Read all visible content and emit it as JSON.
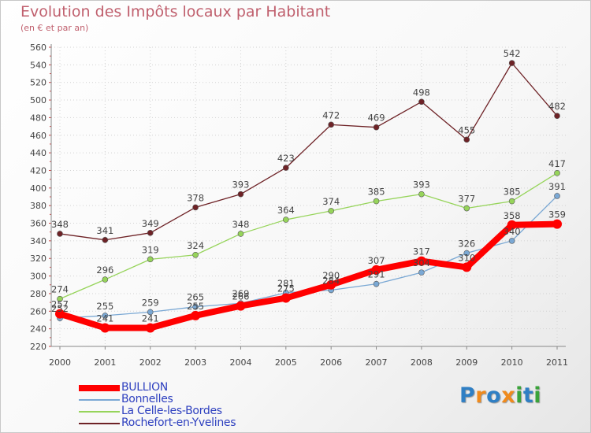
{
  "title": "Evolution des Impôts locaux par Habitant",
  "subtitle": "(en € et par an)",
  "logo": {
    "text": "Proxiti",
    "letters": [
      "P",
      "r",
      "o",
      "x",
      "i",
      "t",
      "i"
    ],
    "colors": [
      "#2f7fc4",
      "#f08a1c",
      "#2f7fc4",
      "#f08a1c",
      "#3aa33a",
      "#2f7fc4",
      "#3aa33a"
    ]
  },
  "chart_data": {
    "type": "line",
    "title": "Evolution des Impôts locaux par Habitant",
    "subtitle": "(en € et par an)",
    "xlabel": "",
    "ylabel": "",
    "ylim": [
      220,
      560
    ],
    "yticks": [
      "220",
      "240",
      "260",
      "280",
      "300",
      "320",
      "340",
      "360",
      "380",
      "400",
      "420",
      "440",
      "460",
      "480",
      "500",
      "520",
      "540",
      "560"
    ],
    "x": [
      "2000",
      "2001",
      "2002",
      "2003",
      "2004",
      "2005",
      "2006",
      "2007",
      "2008",
      "2009",
      "2010",
      "2011"
    ],
    "grid": true,
    "legend_position": "bottom-left",
    "series": [
      {
        "name": "Rochefort-en-Yvelines",
        "color": "#6e2226",
        "values": [
          348,
          341,
          349,
          378,
          393,
          423,
          472,
          469,
          498,
          455,
          542,
          482
        ],
        "labels": [
          "348",
          "341",
          "349",
          "378",
          "393",
          "423",
          "472",
          "469",
          "498",
          "455",
          "542",
          "482"
        ]
      },
      {
        "name": "La Celle-les-Bordes",
        "color": "#96d45a",
        "values": [
          274,
          296,
          319,
          324,
          348,
          364,
          374,
          385,
          393,
          377,
          385,
          417
        ],
        "labels": [
          "274",
          "296",
          "319",
          "324",
          "348",
          "364",
          "374",
          "385",
          "393",
          "377",
          "385",
          "417"
        ]
      },
      {
        "name": "Bonnelles",
        "color": "#7aa8d4",
        "values": [
          252,
          255,
          259,
          265,
          269,
          281,
          284,
          291,
          304,
          326,
          340,
          391
        ],
        "labels": [
          "252",
          "255",
          "259",
          "265",
          "269",
          "281",
          "284",
          "291",
          "304",
          "326",
          "340",
          "391"
        ]
      },
      {
        "name": "BULLION",
        "color": "#ff0000",
        "values": [
          257,
          241,
          241,
          255,
          266,
          275,
          290,
          307,
          317,
          310,
          358,
          359
        ],
        "labels": [
          "257",
          "241",
          "241",
          "255",
          "266",
          "275",
          "290",
          "307",
          "317",
          "310",
          "358",
          "359"
        ]
      }
    ],
    "legend": [
      "BULLION",
      "Bonnelles",
      "La Celle-les-Bordes",
      "Rochefort-en-Yvelines"
    ]
  }
}
